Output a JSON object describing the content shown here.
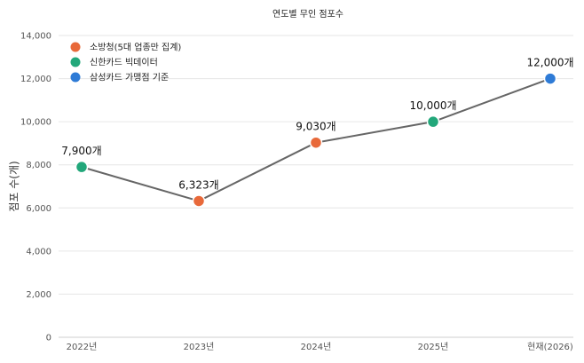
{
  "chart_data": {
    "type": "line",
    "title": "연도별 무인 점포수",
    "xlabel": "",
    "ylabel": "점포 수(개)",
    "categories": [
      "2022년",
      "2023년",
      "2024년",
      "2025년",
      "현재(2026)"
    ],
    "values": [
      7900,
      6323,
      9030,
      10000,
      12000
    ],
    "data_labels": [
      "7,900개",
      "6,323개",
      "9,030개",
      "10,000개",
      "12,000개"
    ],
    "point_source": [
      1,
      0,
      0,
      1,
      2
    ],
    "sources": [
      {
        "name": "소방청(5대 업종만 집계)",
        "color": "#E8693A"
      },
      {
        "name": "신한카드 빅데이터",
        "color": "#22A77A"
      },
      {
        "name": "삼성카드 가맹점 기준",
        "color": "#2E7BD6"
      }
    ],
    "ylim": [
      0,
      14000
    ],
    "yticks": [
      0,
      2000,
      4000,
      6000,
      8000,
      10000,
      12000,
      14000
    ],
    "ytick_labels": [
      "0",
      "2,000",
      "4,000",
      "6,000",
      "8,000",
      "10,000",
      "12,000",
      "14,000"
    ],
    "line_color": "#666666",
    "grid": true,
    "legend_position": "top-left"
  }
}
